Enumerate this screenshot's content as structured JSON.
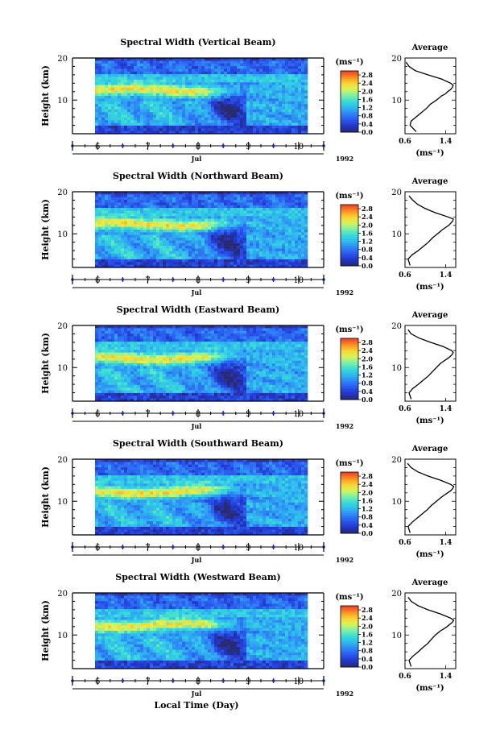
{
  "colors": {
    "axis": "#000000",
    "tick_marker": "#1a2fd0",
    "colormap": [
      "#2a2a6e",
      "#2136c8",
      "#2a58f0",
      "#2f86f4",
      "#2fb8f0",
      "#36dcd8",
      "#7ef0a8",
      "#d6f55a",
      "#fcd32e",
      "#fb8b22",
      "#ee3b22"
    ]
  },
  "chart_data": [
    {
      "type": "heatmap",
      "title": "Spectral Width (Vertical Beam)",
      "ylabel": "Height (km)",
      "yticks": [
        "20",
        "10"
      ],
      "ylim": [
        2,
        20
      ],
      "xticks": [
        "6",
        "7",
        "8",
        "9",
        "10"
      ],
      "xlim": [
        5.5,
        10.5
      ],
      "x_month": "Jul",
      "x_year": "1992",
      "colorbar": {
        "unit": "(ms⁻¹)",
        "ticks": [
          "2.8",
          "2.4",
          "2.0",
          "1.6",
          "1.2",
          "0.8",
          "0.4",
          "0.0"
        ],
        "range": [
          0.0,
          3.0
        ]
      },
      "average": {
        "title": "Average",
        "unit": "(ms⁻¹)",
        "xticks": [
          "0.6",
          "1.4"
        ],
        "xlim": [
          0.6,
          1.6
        ],
        "ylim": [
          2,
          20
        ],
        "heights": [
          2.5,
          4,
          5,
          6,
          7,
          8,
          9,
          10,
          11,
          11.5,
          12,
          12.5,
          13,
          13.5,
          14,
          15,
          16,
          17,
          18,
          19
        ],
        "values": [
          0.82,
          0.7,
          0.72,
          0.82,
          0.92,
          1.02,
          1.1,
          1.22,
          1.32,
          1.4,
          1.44,
          1.5,
          1.53,
          1.55,
          1.5,
          1.32,
          1.05,
          0.8,
          0.68,
          0.62
        ]
      }
    },
    {
      "type": "heatmap",
      "title": "Spectral Width (Northward Beam)",
      "ylabel": "Height (km)",
      "yticks": [
        "20",
        "10"
      ],
      "ylim": [
        2,
        20
      ],
      "xticks": [
        "6",
        "7",
        "8",
        "9",
        "10"
      ],
      "xlim": [
        5.5,
        10.5
      ],
      "x_month": "Jul",
      "x_year": "1992",
      "colorbar": {
        "unit": "(ms⁻¹)",
        "ticks": [
          "2.8",
          "2.4",
          "2.0",
          "1.6",
          "1.2",
          "0.8",
          "0.4",
          "0.0"
        ],
        "range": [
          0.0,
          3.0
        ]
      },
      "average": {
        "title": "Average",
        "unit": "(ms⁻¹)",
        "xticks": [
          "0.6",
          "1.4"
        ],
        "xlim": [
          0.6,
          1.6
        ],
        "ylim": [
          2,
          20
        ],
        "heights": [
          2.5,
          4,
          5,
          6,
          7,
          8,
          9,
          10,
          11,
          11.5,
          12,
          12.5,
          13,
          13.5,
          14,
          15,
          16,
          17,
          18,
          19
        ],
        "values": [
          0.7,
          0.66,
          0.74,
          0.86,
          0.96,
          1.06,
          1.14,
          1.24,
          1.34,
          1.4,
          1.46,
          1.5,
          1.54,
          1.55,
          1.45,
          1.2,
          1.0,
          0.85,
          0.75,
          0.68
        ]
      }
    },
    {
      "type": "heatmap",
      "title": "Spectral Width (Eastward Beam)",
      "ylabel": "Height (km)",
      "yticks": [
        "20",
        "10"
      ],
      "ylim": [
        2,
        20
      ],
      "xticks": [
        "6",
        "7",
        "8",
        "9",
        "10"
      ],
      "xlim": [
        5.5,
        10.5
      ],
      "x_month": "Jul",
      "x_year": "1992",
      "colorbar": {
        "unit": "(ms⁻¹)",
        "ticks": [
          "2.8",
          "2.4",
          "2.0",
          "1.6",
          "1.2",
          "0.8",
          "0.4",
          "0.0"
        ],
        "range": [
          0.0,
          3.0
        ]
      },
      "average": {
        "title": "Average",
        "unit": "(ms⁻¹)",
        "xticks": [
          "0.6",
          "1.4"
        ],
        "xlim": [
          0.6,
          1.6
        ],
        "ylim": [
          2,
          20
        ],
        "heights": [
          2.5,
          4,
          5,
          6,
          7,
          8,
          9,
          10,
          11,
          11.5,
          12,
          12.5,
          13,
          13.5,
          14,
          15,
          16,
          17,
          18,
          19
        ],
        "values": [
          0.72,
          0.68,
          0.75,
          0.86,
          0.96,
          1.06,
          1.14,
          1.22,
          1.3,
          1.36,
          1.42,
          1.48,
          1.52,
          1.55,
          1.52,
          1.35,
          1.1,
          0.88,
          0.72,
          0.66
        ]
      }
    },
    {
      "type": "heatmap",
      "title": "Spectral Width (Southward Beam)",
      "ylabel": "Height (km)",
      "yticks": [
        "20",
        "10"
      ],
      "ylim": [
        2,
        20
      ],
      "xticks": [
        "6",
        "7",
        "8",
        "9",
        "10"
      ],
      "xlim": [
        5.5,
        10.5
      ],
      "x_month": "Jul",
      "x_year": "1992",
      "colorbar": {
        "unit": "(ms⁻¹)",
        "ticks": [
          "2.8",
          "2.4",
          "2.0",
          "1.6",
          "1.2",
          "0.8",
          "0.4",
          "0.0"
        ],
        "range": [
          0.0,
          3.0
        ]
      },
      "average": {
        "title": "Average",
        "unit": "(ms⁻¹)",
        "xticks": [
          "0.6",
          "1.4"
        ],
        "xlim": [
          0.6,
          1.6
        ],
        "ylim": [
          2,
          20
        ],
        "heights": [
          2.5,
          4,
          5,
          6,
          7,
          8,
          9,
          10,
          11,
          11.5,
          12,
          12.5,
          13,
          13.5,
          14,
          15,
          16,
          17,
          18,
          19
        ],
        "values": [
          0.7,
          0.66,
          0.74,
          0.84,
          0.94,
          1.04,
          1.12,
          1.22,
          1.32,
          1.38,
          1.44,
          1.5,
          1.54,
          1.56,
          1.5,
          1.3,
          1.05,
          0.85,
          0.72,
          0.65
        ]
      }
    },
    {
      "type": "heatmap",
      "title": "Spectral Width (Westward Beam)",
      "ylabel": "Height (km)",
      "yticks": [
        "20",
        "10"
      ],
      "ylim": [
        2,
        20
      ],
      "xticks": [
        "6",
        "7",
        "8",
        "9",
        "10"
      ],
      "xlim": [
        5.5,
        10.5
      ],
      "x_month": "Jul",
      "x_year": "1992",
      "xlabel": "Local Time (Day)",
      "colorbar": {
        "unit": "(ms⁻¹)",
        "ticks": [
          "2.8",
          "2.4",
          "2.0",
          "1.6",
          "1.2",
          "0.8",
          "0.4",
          "0.0"
        ],
        "range": [
          0.0,
          3.0
        ]
      },
      "average": {
        "title": "Average",
        "unit": "(ms⁻¹)",
        "xticks": [
          "0.6",
          "1.4"
        ],
        "xlim": [
          0.6,
          1.6
        ],
        "ylim": [
          2,
          20
        ],
        "heights": [
          2.5,
          4,
          5,
          6,
          7,
          8,
          9,
          10,
          11,
          11.5,
          12,
          12.5,
          13,
          13.5,
          14,
          15,
          16,
          17,
          18,
          19
        ],
        "values": [
          0.72,
          0.68,
          0.76,
          0.86,
          0.95,
          1.05,
          1.12,
          1.2,
          1.3,
          1.37,
          1.43,
          1.48,
          1.53,
          1.56,
          1.5,
          1.3,
          1.05,
          0.85,
          0.72,
          0.66
        ]
      }
    }
  ]
}
